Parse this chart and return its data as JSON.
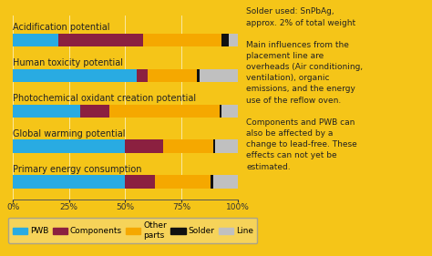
{
  "categories": [
    "Acidification potential",
    "Human toxicity potential",
    "Photochemical oxidant creation potential",
    "Global warming potential",
    "Primary energy consumption"
  ],
  "series": {
    "PWB": [
      20,
      55,
      30,
      50,
      50
    ],
    "Components": [
      38,
      5,
      13,
      17,
      13
    ],
    "Other parts": [
      35,
      22,
      49,
      22,
      25
    ],
    "Solder": [
      3,
      1,
      1,
      1,
      1
    ],
    "Line": [
      4,
      17,
      7,
      10,
      11
    ]
  },
  "colors": {
    "PWB": "#29ABE2",
    "Components": "#8B2040",
    "Other parts": "#F5A800",
    "Solder": "#111111",
    "Line": "#C0C0C0"
  },
  "bg_color": "#F5C518",
  "xlabel_ticks": [
    "0%",
    "25%",
    "50%",
    "75%",
    "100%"
  ],
  "xlabel_vals": [
    0,
    25,
    50,
    75,
    100
  ],
  "text_lines": [
    "Solder used: SnPbAg,",
    "approx. 2% of total weight",
    "",
    "Main influences from the",
    "placement line are",
    "overheads (Air conditioning,",
    "ventilation), organic",
    "emissions, and the energy",
    "use of the reflow oven.",
    "",
    "Components and PWB can",
    "also be affected by a",
    "change to lead-free. These",
    "effects can not yet be",
    "estimated."
  ],
  "legend_order": [
    "PWB",
    "Components",
    "Other parts",
    "Solder",
    "Line"
  ],
  "label_fontsize": 7.0,
  "tick_fontsize": 6.5,
  "legend_fontsize": 6.5,
  "annot_fontsize": 6.5
}
